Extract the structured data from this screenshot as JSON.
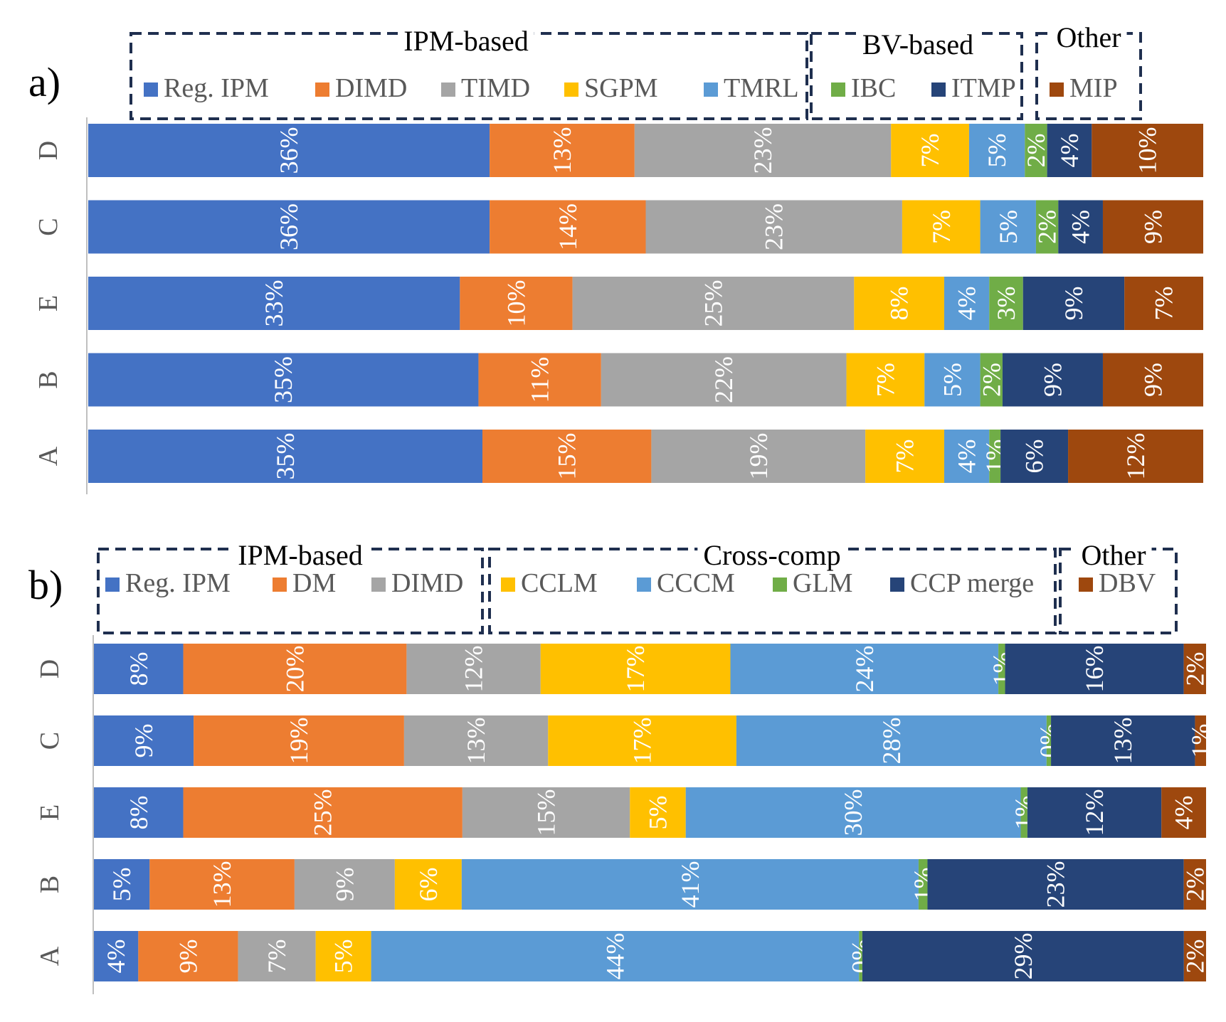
{
  "chart_data": [
    {
      "type": "bar",
      "orientation": "horizontal",
      "stacked": true,
      "panel_label": "a)",
      "categories": [
        "D",
        "C",
        "E",
        "B",
        "A"
      ],
      "legend_groups": [
        {
          "label": "IPM-based",
          "members": [
            "Reg. IPM",
            "DIMD",
            "TIMD",
            "SGPM",
            "TMRL"
          ]
        },
        {
          "label": "BV-based",
          "members": [
            "IBC",
            "ITMP"
          ]
        },
        {
          "label": "Other",
          "members": [
            "MIP"
          ]
        }
      ],
      "series": [
        {
          "name": "Reg. IPM",
          "color": "#4472c4",
          "values": [
            36,
            36,
            33,
            35,
            35
          ],
          "labels": [
            "36%",
            "36%",
            "33%",
            "35%",
            "35%"
          ]
        },
        {
          "name": "DIMD",
          "color": "#ed7d31",
          "values": [
            13,
            14,
            10,
            11,
            15
          ],
          "labels": [
            "13%",
            "14%",
            "10%",
            "11%",
            "15%"
          ]
        },
        {
          "name": "TIMD",
          "color": "#a5a5a5",
          "values": [
            23,
            23,
            25,
            22,
            19
          ],
          "labels": [
            "23%",
            "23%",
            "25%",
            "22%",
            "19%"
          ]
        },
        {
          "name": "SGPM",
          "color": "#ffc000",
          "values": [
            7,
            7,
            8,
            7,
            7
          ],
          "labels": [
            "7%",
            "7%",
            "8%",
            "7%",
            "7%"
          ]
        },
        {
          "name": "TMRL",
          "color": "#5b9bd5",
          "values": [
            5,
            5,
            4,
            5,
            4
          ],
          "labels": [
            "5%",
            "5%",
            "4%",
            "5%",
            "4%"
          ]
        },
        {
          "name": "IBC",
          "color": "#70ad47",
          "values": [
            2,
            2,
            3,
            2,
            1
          ],
          "labels": [
            "2%",
            "2%",
            "3%",
            "2%",
            "1%"
          ]
        },
        {
          "name": "ITMP",
          "color": "#264478",
          "values": [
            4,
            4,
            9,
            9,
            6
          ],
          "labels": [
            "4%",
            "4%",
            "9%",
            "9%",
            "6%"
          ]
        },
        {
          "name": "MIP",
          "color": "#9e480e",
          "values": [
            10,
            9,
            7,
            9,
            12
          ],
          "labels": [
            "10%",
            "9%",
            "7%",
            "9%",
            "12%"
          ]
        }
      ]
    },
    {
      "type": "bar",
      "orientation": "horizontal",
      "stacked": true,
      "panel_label": "b)",
      "categories": [
        "D",
        "C",
        "E",
        "B",
        "A"
      ],
      "legend_groups": [
        {
          "label": "IPM-based",
          "members": [
            "Reg. IPM",
            "DM",
            "DIMD"
          ]
        },
        {
          "label": "Cross-comp",
          "members": [
            "CCLM",
            "CCCM",
            "GLM",
            "CCP merge"
          ]
        },
        {
          "label": "Other",
          "members": [
            "DBV"
          ]
        }
      ],
      "series": [
        {
          "name": "Reg. IPM",
          "color": "#4472c4",
          "values": [
            8,
            9,
            8,
            5,
            4
          ],
          "labels": [
            "8%",
            "9%",
            "8%",
            "5%",
            "4%"
          ]
        },
        {
          "name": "DM",
          "color": "#ed7d31",
          "values": [
            20,
            19,
            25,
            13,
            9
          ],
          "labels": [
            "20%",
            "19%",
            "25%",
            "13%",
            "9%"
          ]
        },
        {
          "name": "DIMD",
          "color": "#a5a5a5",
          "values": [
            12,
            13,
            15,
            9,
            7
          ],
          "labels": [
            "12%",
            "13%",
            "15%",
            "9%",
            "7%"
          ]
        },
        {
          "name": "CCLM",
          "color": "#ffc000",
          "values": [
            17,
            17,
            5,
            6,
            5
          ],
          "labels": [
            "17%",
            "17%",
            "5%",
            "6%",
            "5%"
          ]
        },
        {
          "name": "CCCM",
          "color": "#5b9bd5",
          "values": [
            24,
            28,
            30,
            41,
            44
          ],
          "labels": [
            "24%",
            "28%",
            "30%",
            "41%",
            "44%"
          ]
        },
        {
          "name": "GLM",
          "color": "#70ad47",
          "values": [
            0.6,
            0.4,
            0.6,
            0.8,
            0.3
          ],
          "labels": [
            "1%",
            "0%",
            "1%",
            "1%",
            "0%"
          ]
        },
        {
          "name": "CCP merge",
          "color": "#264478",
          "values": [
            16,
            13,
            12,
            23,
            29
          ],
          "labels": [
            "16%",
            "13%",
            "12%",
            "23%",
            "29%"
          ]
        },
        {
          "name": "DBV",
          "color": "#9e480e",
          "values": [
            2,
            1,
            4,
            2,
            2
          ],
          "labels": [
            "2%",
            "1%",
            "4%",
            "2%",
            "2%"
          ]
        }
      ]
    }
  ]
}
